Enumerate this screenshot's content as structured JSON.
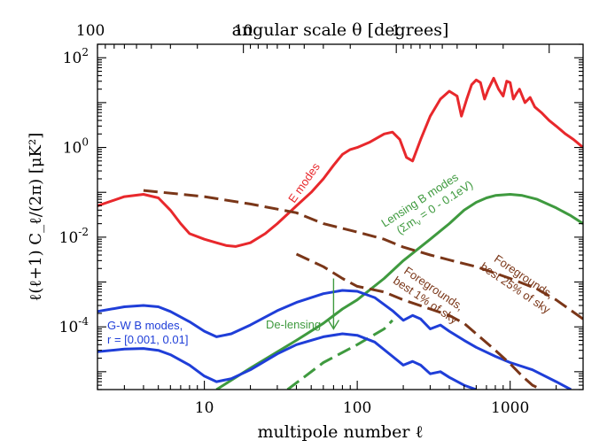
{
  "chart_data": {
    "type": "line",
    "xscale": "log",
    "yscale": "log",
    "xlim": [
      2,
      3000
    ],
    "ylim": [
      4e-06,
      200
    ],
    "grid": false,
    "xlabel": "multipole number ℓ",
    "ylabel": "ℓ(ℓ+1) C_ℓ/(2π) [μK²]",
    "top_axis_label": "angular scale θ [degrees]",
    "x_ticks": [
      {
        "value": 10,
        "label": "10"
      },
      {
        "value": 100,
        "label": "100"
      },
      {
        "value": 1000,
        "label": "1000"
      }
    ],
    "y_ticks": [
      {
        "value": 0.0001,
        "base": "10",
        "exp": "-4"
      },
      {
        "value": 0.01,
        "base": "10",
        "exp": "-2"
      },
      {
        "value": 1,
        "base": "10",
        "exp": "0"
      },
      {
        "value": 100,
        "base": "10",
        "exp": "2"
      }
    ],
    "top_ticks": [
      {
        "degrees": 100,
        "label": "100"
      },
      {
        "degrees": 10,
        "label": "10"
      },
      {
        "degrees": 1,
        "label": "1"
      }
    ],
    "series": [
      {
        "name": "E modes",
        "color": "#e8282c",
        "dash": "solid",
        "points": [
          [
            2,
            0.05
          ],
          [
            3,
            0.08
          ],
          [
            4,
            0.09
          ],
          [
            5,
            0.075
          ],
          [
            6,
            0.04
          ],
          [
            7,
            0.02
          ],
          [
            8,
            0.012
          ],
          [
            10,
            0.009
          ],
          [
            12,
            0.0075
          ],
          [
            14,
            0.0065
          ],
          [
            16,
            0.0062
          ],
          [
            20,
            0.0075
          ],
          [
            25,
            0.012
          ],
          [
            30,
            0.02
          ],
          [
            40,
            0.05
          ],
          [
            50,
            0.1
          ],
          [
            60,
            0.2
          ],
          [
            70,
            0.4
          ],
          [
            80,
            0.7
          ],
          [
            90,
            0.9
          ],
          [
            100,
            1.0
          ],
          [
            120,
            1.3
          ],
          [
            150,
            2.0
          ],
          [
            170,
            2.2
          ],
          [
            190,
            1.5
          ],
          [
            210,
            0.6
          ],
          [
            230,
            0.5
          ],
          [
            260,
            1.5
          ],
          [
            300,
            5
          ],
          [
            350,
            12
          ],
          [
            400,
            18
          ],
          [
            450,
            14
          ],
          [
            480,
            5
          ],
          [
            520,
            12
          ],
          [
            560,
            25
          ],
          [
            600,
            32
          ],
          [
            640,
            28
          ],
          [
            680,
            12
          ],
          [
            720,
            20
          ],
          [
            780,
            35
          ],
          [
            840,
            20
          ],
          [
            900,
            14
          ],
          [
            950,
            30
          ],
          [
            1000,
            28
          ],
          [
            1050,
            12
          ],
          [
            1100,
            16
          ],
          [
            1150,
            20
          ],
          [
            1250,
            10
          ],
          [
            1350,
            13
          ],
          [
            1450,
            8
          ],
          [
            1600,
            6
          ],
          [
            1800,
            4
          ],
          [
            2000,
            3
          ],
          [
            2300,
            2
          ],
          [
            2600,
            1.5
          ],
          [
            3000,
            1.0
          ]
        ]
      },
      {
        "name": "Lensing B modes",
        "color": "#3f9a3f",
        "dash": "solid",
        "points": [
          [
            12,
            4e-06
          ],
          [
            20,
            1.2e-05
          ],
          [
            40,
            5e-05
          ],
          [
            60,
            0.00012
          ],
          [
            80,
            0.00025
          ],
          [
            100,
            0.0004
          ],
          [
            150,
            0.0012
          ],
          [
            200,
            0.003
          ],
          [
            300,
            0.009
          ],
          [
            400,
            0.02
          ],
          [
            500,
            0.04
          ],
          [
            600,
            0.06
          ],
          [
            700,
            0.075
          ],
          [
            800,
            0.085
          ],
          [
            1000,
            0.09
          ],
          [
            1200,
            0.085
          ],
          [
            1500,
            0.07
          ],
          [
            2000,
            0.045
          ],
          [
            2500,
            0.03
          ],
          [
            3000,
            0.02
          ]
        ]
      },
      {
        "name": "Lensing B modes residual",
        "color": "#3f9a3f",
        "dash": "dashed",
        "points": [
          [
            35,
            4e-06
          ],
          [
            60,
            1.6e-05
          ],
          [
            100,
            4e-05
          ],
          [
            150,
            9e-05
          ],
          [
            170,
            0.00014
          ]
        ]
      },
      {
        "name": "G-W B modes r = 0.01",
        "color": "#1f3ed8",
        "dash": "solid",
        "points": [
          [
            2,
            0.00022
          ],
          [
            3,
            0.00028
          ],
          [
            4,
            0.0003
          ],
          [
            5,
            0.00028
          ],
          [
            6,
            0.00022
          ],
          [
            8,
            0.00013
          ],
          [
            10,
            8e-05
          ],
          [
            12,
            6e-05
          ],
          [
            15,
            7e-05
          ],
          [
            20,
            0.00011
          ],
          [
            30,
            0.00023
          ],
          [
            40,
            0.00035
          ],
          [
            60,
            0.00055
          ],
          [
            80,
            0.00065
          ],
          [
            100,
            0.00062
          ],
          [
            130,
            0.00045
          ],
          [
            170,
            0.00023
          ],
          [
            200,
            0.00014
          ],
          [
            230,
            0.00018
          ],
          [
            260,
            0.00015
          ],
          [
            300,
            9e-05
          ],
          [
            350,
            0.00011
          ],
          [
            400,
            8e-05
          ],
          [
            500,
            5e-05
          ],
          [
            600,
            3.5e-05
          ],
          [
            800,
            2.2e-05
          ],
          [
            1000,
            1.6e-05
          ],
          [
            1400,
            1.1e-05
          ],
          [
            2000,
            6e-06
          ],
          [
            2500,
            4e-06
          ]
        ]
      },
      {
        "name": "G-W B modes r = 0.001",
        "color": "#1f3ed8",
        "dash": "solid",
        "points": [
          [
            2,
            2.8e-05
          ],
          [
            3,
            3.2e-05
          ],
          [
            4,
            3.3e-05
          ],
          [
            5,
            3e-05
          ],
          [
            6,
            2.4e-05
          ],
          [
            8,
            1.4e-05
          ],
          [
            10,
            8e-06
          ],
          [
            12,
            6e-06
          ],
          [
            15,
            7e-06
          ],
          [
            20,
            1.1e-05
          ],
          [
            30,
            2.5e-05
          ],
          [
            40,
            4e-05
          ],
          [
            60,
            6e-05
          ],
          [
            80,
            7e-05
          ],
          [
            100,
            6.5e-05
          ],
          [
            130,
            4.6e-05
          ],
          [
            170,
            2.2e-05
          ],
          [
            200,
            1.4e-05
          ],
          [
            230,
            1.7e-05
          ],
          [
            260,
            1.4e-05
          ],
          [
            300,
            9e-06
          ],
          [
            350,
            1e-05
          ],
          [
            400,
            7.5e-06
          ],
          [
            500,
            5e-06
          ],
          [
            600,
            4e-06
          ]
        ]
      },
      {
        "name": "Foregrounds, best 25% of sky",
        "color": "#7a3618",
        "dash": "dashed",
        "points": [
          [
            4,
            0.11
          ],
          [
            10,
            0.08
          ],
          [
            20,
            0.055
          ],
          [
            40,
            0.035
          ],
          [
            60,
            0.02
          ],
          [
            100,
            0.013
          ],
          [
            150,
            0.009
          ],
          [
            200,
            0.006
          ],
          [
            300,
            0.004
          ],
          [
            450,
            0.0028
          ],
          [
            600,
            0.0022
          ],
          [
            1000,
            0.0012
          ],
          [
            1500,
            0.0007
          ],
          [
            2000,
            0.0004
          ],
          [
            3000,
            0.00015
          ]
        ]
      },
      {
        "name": "Foregrounds, best 1% of sky",
        "color": "#7a3618",
        "dash": "dashed",
        "points": [
          [
            40,
            0.0042
          ],
          [
            60,
            0.0022
          ],
          [
            80,
            0.0012
          ],
          [
            100,
            0.0008
          ],
          [
            150,
            0.0006
          ],
          [
            200,
            0.0004
          ],
          [
            300,
            0.00025
          ],
          [
            400,
            0.00018
          ],
          [
            500,
            0.00012
          ],
          [
            600,
            7e-05
          ],
          [
            800,
            3e-05
          ],
          [
            1000,
            1.5e-05
          ],
          [
            1200,
            8e-06
          ],
          [
            1400,
            5e-06
          ],
          [
            1600,
            4e-06
          ]
        ]
      }
    ],
    "annotations": {
      "e_modes": "E modes",
      "lensing_line1": "Lensing B modes",
      "lensing_line2": "(Σm",
      "lensing_sub": "ν",
      "lensing_line2_rest": " = 0 - 0.1eV)",
      "fg25_line1": "Foregrounds,",
      "fg25_line2": "best 25% of sky",
      "fg1_line1": "Foregrounds,",
      "fg1_line2": "best 1% of sky",
      "gw_line1": "G-W B modes,",
      "gw_line2": "r = [0.001, 0.01]",
      "delensing": "De-lensing"
    },
    "delensing_arrow": {
      "x": 70,
      "y_from": 0.0012,
      "y_to": 9e-05
    }
  }
}
